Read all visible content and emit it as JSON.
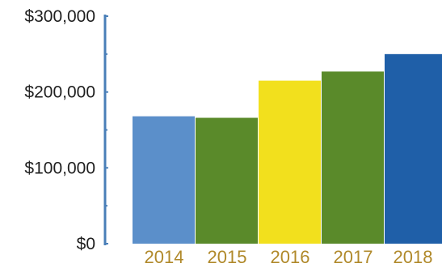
{
  "chart_data": {
    "type": "bar",
    "categories": [
      "2014",
      "2015",
      "2016",
      "2017",
      "2018"
    ],
    "values": [
      168000,
      166000,
      215000,
      227000,
      250000
    ],
    "bar_colors": [
      "#5b8fca",
      "#5a8a2a",
      "#f2e01d",
      "#5a8a2a",
      "#1f5fa8"
    ],
    "title": "",
    "xlabel": "",
    "ylabel": "",
    "ylim": [
      0,
      300000
    ],
    "y_ticks": [
      {
        "value": 0,
        "label": "$0"
      },
      {
        "value": 100000,
        "label": "$100,000"
      },
      {
        "value": 200000,
        "label": "$200,000"
      },
      {
        "value": 300000,
        "label": "$300,000"
      }
    ],
    "grid": false,
    "legend": "none",
    "axis_color": "#4a7fb8",
    "x_label_color": "#b0892a"
  }
}
